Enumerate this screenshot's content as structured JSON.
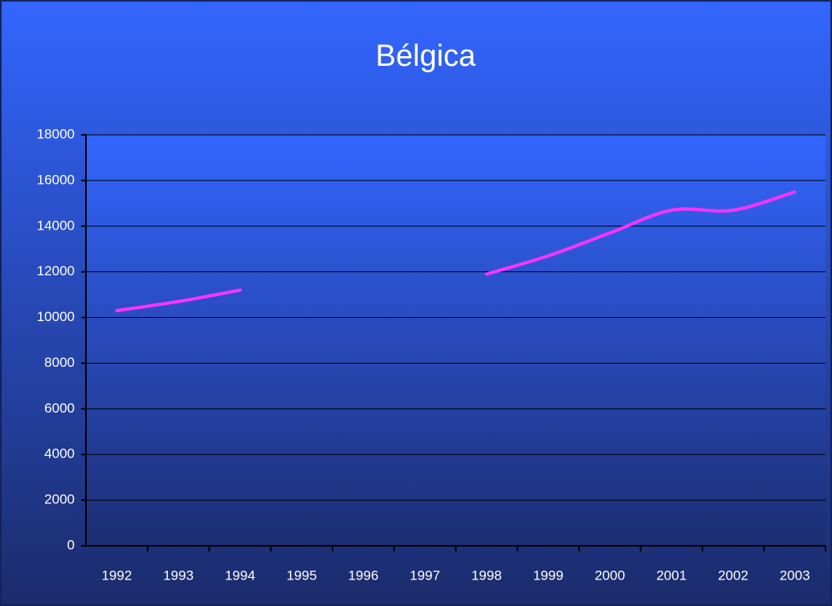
{
  "chart_data": {
    "type": "line",
    "title": "Bélgica",
    "categories": [
      "1992",
      "1993",
      "1994",
      "1995",
      "1996",
      "1997",
      "1998",
      "1999",
      "2000",
      "2001",
      "2002",
      "2003"
    ],
    "values": [
      10300,
      10700,
      11200,
      null,
      null,
      null,
      11900,
      12700,
      13700,
      14700,
      14700,
      15500
    ],
    "color": "#ff33ff",
    "smooth": true,
    "ylim": [
      0,
      18000
    ],
    "yticks": [
      0,
      2000,
      4000,
      6000,
      8000,
      10000,
      12000,
      14000,
      16000,
      18000
    ],
    "grid": true
  }
}
